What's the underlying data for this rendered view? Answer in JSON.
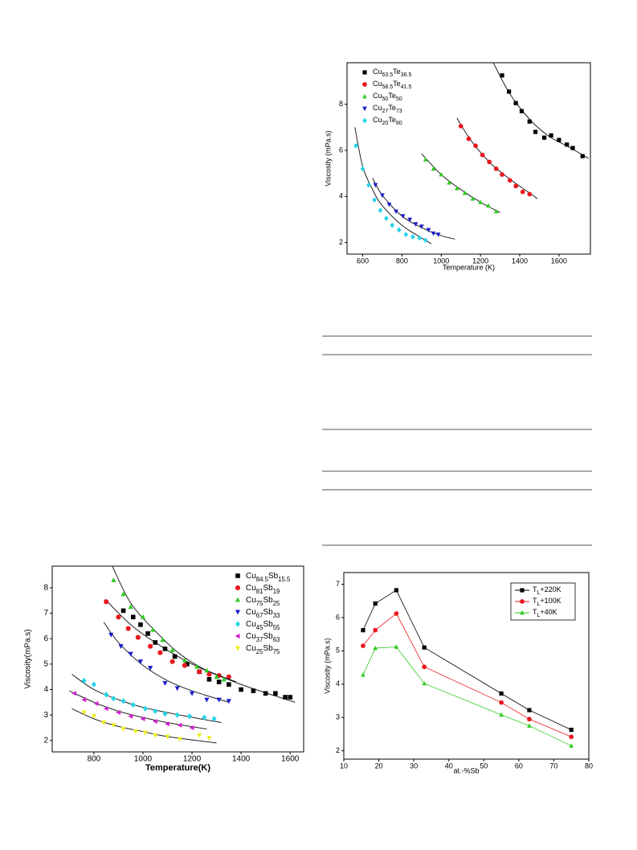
{
  "chart_data": [
    {
      "type": "scatter",
      "xlabel": "Temperature (K)",
      "ylabel": "Viscosity (mPa.s)",
      "xlim": [
        520,
        1760
      ],
      "xticks": [
        600,
        800,
        1000,
        1200,
        1400,
        1600
      ],
      "ylim": [
        1.5,
        9.8
      ],
      "yticks": [
        2,
        4,
        6,
        8
      ],
      "legend": "upper left",
      "series": [
        {
          "name": "Cu63.5Te36.5",
          "color": "#000000",
          "marker": "square",
          "x": [
            1310,
            1345,
            1380,
            1410,
            1450,
            1480,
            1525,
            1560,
            1600,
            1640,
            1670,
            1720
          ],
          "values": [
            9.25,
            8.55,
            8.05,
            7.7,
            7.25,
            6.8,
            6.55,
            6.65,
            6.45,
            6.25,
            6.1,
            5.75
          ],
          "fit_x": [
            1265,
            1350,
            1450,
            1550,
            1650,
            1750
          ],
          "fit_values": [
            9.8,
            8.45,
            7.35,
            6.6,
            6.15,
            5.65
          ]
        },
        {
          "name": "Cu58.5Te41.5",
          "color": "#e8171d",
          "marker": "circle",
          "x": [
            1100,
            1140,
            1175,
            1210,
            1245,
            1280,
            1310,
            1350,
            1380,
            1415,
            1450
          ],
          "values": [
            7.05,
            6.5,
            6.2,
            5.8,
            5.5,
            5.2,
            4.95,
            4.7,
            4.45,
            4.2,
            4.1
          ],
          "fit_x": [
            1080,
            1150,
            1250,
            1350,
            1450,
            1490
          ],
          "fit_values": [
            7.4,
            6.45,
            5.45,
            4.75,
            4.15,
            3.9
          ]
        },
        {
          "name": "Cu50Te50",
          "color": "#2ecc1f",
          "marker": "triangle",
          "x": [
            920,
            960,
            1000,
            1040,
            1080,
            1120,
            1160,
            1200,
            1240,
            1280
          ],
          "values": [
            5.6,
            5.2,
            4.95,
            4.6,
            4.35,
            4.15,
            3.9,
            3.75,
            3.6,
            3.35
          ],
          "fit_x": [
            900,
            1000,
            1100,
            1200,
            1300
          ],
          "fit_values": [
            5.85,
            4.95,
            4.3,
            3.75,
            3.3
          ]
        },
        {
          "name": "Cu27Te73",
          "color": "#1a1acc",
          "marker": "triangle-down",
          "x": [
            665,
            700,
            735,
            770,
            805,
            840,
            870,
            900,
            935,
            960,
            985
          ],
          "values": [
            4.5,
            4.05,
            3.65,
            3.35,
            3.15,
            3.0,
            2.8,
            2.7,
            2.55,
            2.4,
            2.35
          ],
          "fit_x": [
            650,
            700,
            800,
            900,
            1000,
            1070
          ],
          "fit_values": [
            4.8,
            4.05,
            3.15,
            2.65,
            2.3,
            2.15
          ]
        },
        {
          "name": "Cu20Te80",
          "color": "#25d4e8",
          "marker": "diamond",
          "x": [
            565,
            600,
            630,
            660,
            690,
            720,
            750,
            785,
            820,
            855,
            890,
            920
          ],
          "values": [
            6.2,
            5.2,
            4.5,
            3.85,
            3.4,
            3.05,
            2.75,
            2.55,
            2.35,
            2.25,
            2.2,
            2.1
          ],
          "fit_x": [
            560,
            600,
            650,
            700,
            800,
            900,
            950
          ],
          "fit_values": [
            7.0,
            5.3,
            4.3,
            3.6,
            2.75,
            2.2,
            1.95
          ]
        }
      ]
    },
    {
      "type": "scatter",
      "xlabel": "Temperature(K)",
      "ylabel": "Viscosity(mPa.s)",
      "xlim": [
        630,
        1655
      ],
      "xticks": [
        800,
        1000,
        1200,
        1400,
        1600
      ],
      "ylim": [
        1.55,
        8.85
      ],
      "yticks": [
        2,
        3,
        4,
        5,
        6,
        7,
        8
      ],
      "legend": "upper right",
      "series": [
        {
          "name": "Cu84.5Sb15.5",
          "color": "#000000",
          "marker": "square",
          "x": [
            920,
            960,
            990,
            1020,
            1050,
            1090,
            1130,
            1180,
            1230,
            1270,
            1310,
            1350,
            1400,
            1450,
            1500,
            1540,
            1580,
            1600
          ],
          "values": [
            7.1,
            6.85,
            6.55,
            6.2,
            5.85,
            5.6,
            5.3,
            5.0,
            4.7,
            4.4,
            4.3,
            4.2,
            4.0,
            3.95,
            3.85,
            3.85,
            3.7,
            3.7
          ],
          "fit_x": [
            845,
            950,
            1050,
            1200,
            1400,
            1620
          ],
          "fit_values": [
            7.55,
            6.55,
            5.85,
            5.0,
            4.2,
            3.5
          ]
        },
        {
          "name": "Cu81Sb19",
          "color": "#e8171d",
          "marker": "circle",
          "x": [
            850,
            900,
            940,
            980,
            1030,
            1070,
            1120,
            1170,
            1230,
            1270,
            1310,
            1350
          ],
          "values": [
            7.45,
            6.85,
            6.4,
            6.05,
            5.7,
            5.45,
            5.1,
            4.95,
            4.7,
            4.6,
            4.55,
            4.5
          ]
        },
        {
          "name": "Cu75Sb25",
          "color": "#2ecc1f",
          "marker": "triangle",
          "x": [
            880,
            920,
            950,
            1000,
            1040,
            1080,
            1120,
            1170,
            1220,
            1260,
            1300,
            1330
          ],
          "values": [
            8.3,
            7.75,
            7.25,
            6.85,
            6.35,
            5.95,
            5.55,
            5.15,
            4.9,
            4.75,
            4.5,
            4.4
          ],
          "fit_x": [
            875,
            950,
            1050,
            1150,
            1250,
            1380
          ],
          "fit_values": [
            8.85,
            7.4,
            6.3,
            5.4,
            4.8,
            4.3
          ]
        },
        {
          "name": "Cu67Sb33",
          "color": "#1a1acc",
          "marker": "triangle-down",
          "x": [
            870,
            910,
            950,
            990,
            1030,
            1090,
            1140,
            1200,
            1260,
            1310,
            1350
          ],
          "values": [
            6.15,
            5.7,
            5.4,
            5.1,
            4.85,
            4.25,
            4.05,
            3.85,
            3.6,
            3.6,
            3.55
          ],
          "fit_x": [
            840,
            900,
            1000,
            1100,
            1200,
            1350
          ],
          "fit_values": [
            6.65,
            5.85,
            4.95,
            4.35,
            3.95,
            3.5
          ]
        },
        {
          "name": "Cu45Sb55",
          "color": "#25d4e8",
          "marker": "diamond",
          "x": [
            760,
            800,
            850,
            880,
            920,
            960,
            1010,
            1050,
            1090,
            1140,
            1190,
            1250,
            1290
          ],
          "values": [
            4.35,
            4.2,
            3.8,
            3.65,
            3.55,
            3.4,
            3.25,
            3.15,
            3.05,
            3.0,
            2.95,
            2.9,
            2.85
          ],
          "fit_x": [
            710,
            800,
            900,
            1000,
            1150,
            1320
          ],
          "fit_values": [
            4.6,
            4.0,
            3.6,
            3.3,
            3.0,
            2.7
          ]
        },
        {
          "name": "Cu37Sb63",
          "color": "#d21fd2",
          "marker": "triangle-left",
          "x": [
            720,
            760,
            810,
            850,
            900,
            950,
            1000,
            1050,
            1100,
            1150,
            1200
          ],
          "values": [
            3.85,
            3.6,
            3.45,
            3.25,
            3.1,
            2.95,
            2.85,
            2.75,
            2.65,
            2.6,
            2.5
          ],
          "fit_x": [
            700,
            800,
            900,
            1000,
            1100,
            1260
          ],
          "fit_values": [
            3.95,
            3.5,
            3.15,
            2.9,
            2.7,
            2.45
          ]
        },
        {
          "name": "Cu25Sb75",
          "color": "#eded1c",
          "marker": "triangle-down",
          "x": [
            760,
            800,
            840,
            880,
            920,
            970,
            1010,
            1050,
            1100,
            1150,
            1230,
            1270
          ],
          "values": [
            3.1,
            2.95,
            2.7,
            2.6,
            2.45,
            2.35,
            2.3,
            2.2,
            2.15,
            2.05,
            2.2,
            2.1
          ],
          "fit_x": [
            710,
            800,
            900,
            1000,
            1100,
            1300
          ],
          "fit_values": [
            3.25,
            2.85,
            2.55,
            2.35,
            2.15,
            1.9
          ]
        }
      ]
    },
    {
      "type": "line",
      "xlabel": "at.-%Sb",
      "ylabel": "Viscosity (mPa.s)",
      "xlim": [
        10,
        80
      ],
      "xticks": [
        10,
        20,
        30,
        40,
        50,
        60,
        70,
        80
      ],
      "ylim": [
        1.75,
        7.35
      ],
      "yticks": [
        2,
        3,
        4,
        5,
        6,
        7
      ],
      "legend": "upper right",
      "series": [
        {
          "name": "TL+220K",
          "color": "#000000",
          "marker": "square",
          "x": [
            15.5,
            19,
            25,
            33,
            55,
            63,
            75
          ],
          "values": [
            5.62,
            6.42,
            6.82,
            5.1,
            3.72,
            3.22,
            2.63
          ]
        },
        {
          "name": "TL+100K",
          "color": "#e8171d",
          "marker": "circle",
          "x": [
            15.5,
            19,
            25,
            33,
            55,
            63,
            75
          ],
          "values": [
            5.15,
            5.62,
            6.12,
            4.52,
            3.45,
            2.95,
            2.42
          ]
        },
        {
          "name": "TL+40K",
          "color": "#2ecc1f",
          "marker": "triangle",
          "x": [
            15.5,
            19,
            25,
            33,
            55,
            63,
            75
          ],
          "values": [
            4.28,
            5.08,
            5.12,
            4.02,
            3.08,
            2.75,
            2.15
          ]
        }
      ]
    }
  ]
}
